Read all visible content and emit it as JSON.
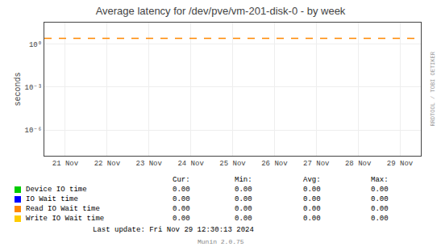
{
  "chart_data": {
    "type": "line",
    "title": "Average latency for /dev/pve/vm-201-disk-0 - by week",
    "y_label": "seconds",
    "categories": [
      "21 Nov",
      "22 Nov",
      "23 Nov",
      "24 Nov",
      "25 Nov",
      "26 Nov",
      "27 Nov",
      "28 Nov",
      "29 Nov"
    ],
    "log": "y",
    "ylim": [
      1.584893192461114e-08,
      31.622776601683793
    ],
    "yticks": [
      {
        "value": 1e-06,
        "label": "10⁻⁶"
      },
      {
        "value": 0.001,
        "label": "10⁻³"
      },
      {
        "value": 1,
        "label": "10⁰"
      }
    ],
    "grid": true,
    "lines": [
      {
        "value": 2.5,
        "color": "#ff8800",
        "line_style": "dashed"
      }
    ],
    "table": {
      "headers": [
        "Cur:",
        "Min:",
        "Avg:",
        "Max:"
      ],
      "rows": [
        {
          "name": "Device IO time",
          "color": "#00cc00",
          "values": [
            0.0,
            0.0,
            0.0,
            0.0
          ],
          "value_labels": [
            "0.00",
            "0.00",
            "0.00",
            "0.00"
          ]
        },
        {
          "name": "IO Wait time",
          "color": "#0000ff",
          "values": [
            0.0,
            0.0,
            0.0,
            0.0
          ],
          "value_labels": [
            "0.00",
            "0.00",
            "0.00",
            "0.00"
          ]
        },
        {
          "name": "Read IO Wait time",
          "color": "#ff8800",
          "values": [
            0.0,
            0.0,
            0.0,
            0.0
          ],
          "value_labels": [
            "0.00",
            "0.00",
            "0.00",
            "0.00"
          ]
        },
        {
          "name": "Write IO Wait time",
          "color": "#ffcc00",
          "values": [
            0.0,
            0.0,
            0.0,
            0.0
          ],
          "value_labels": [
            "0.00",
            "0.00",
            "0.00",
            "0.00"
          ]
        }
      ]
    },
    "annotations": [
      "RRDTOOL / TOBI OETIKER",
      "Last update: Fri Nov 29 12:30:13 2024",
      "Munin 2.0.75"
    ]
  }
}
